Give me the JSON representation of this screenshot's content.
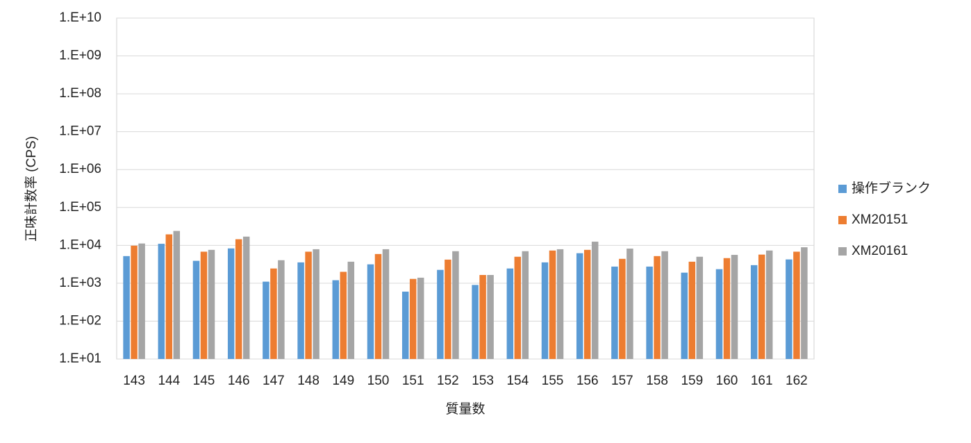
{
  "chart_data": {
    "type": "bar",
    "log_scale": true,
    "grid": true,
    "legend": "right",
    "x_label": "質量数",
    "y_label": "正味計数率 (CPS)",
    "categories": [
      "143",
      "144",
      "145",
      "146",
      "147",
      "148",
      "149",
      "150",
      "151",
      "152",
      "153",
      "154",
      "155",
      "156",
      "157",
      "158",
      "159",
      "160",
      "161",
      "162"
    ],
    "series": [
      {
        "name": "操作ブランク",
        "color": "#5b9bd5",
        "values": [
          5200,
          11000,
          3900,
          8300,
          1100,
          3550,
          1200,
          3150,
          600,
          2250,
          900,
          2450,
          3550,
          6200,
          2750,
          2750,
          1900,
          2350,
          3000,
          4250
        ]
      },
      {
        "name": "XM20151",
        "color": "#ed7d31",
        "values": [
          9800,
          19500,
          6800,
          14500,
          2450,
          6800,
          2000,
          5900,
          1300,
          4200,
          1650,
          5000,
          7300,
          7600,
          4400,
          5200,
          3700,
          4600,
          5700,
          6800
        ]
      },
      {
        "name": "XM20161",
        "color": "#a5a5a5",
        "values": [
          11200,
          24000,
          7600,
          17000,
          4050,
          7900,
          3700,
          7900,
          1400,
          7000,
          1650,
          7000,
          7900,
          12500,
          8200,
          7000,
          5000,
          5600,
          7300,
          8900
        ]
      }
    ],
    "ylim": [
      10,
      10000000000
    ],
    "yticks": [
      {
        "value": 10,
        "label": "1.E+01"
      },
      {
        "value": 100,
        "label": "1.E+02"
      },
      {
        "value": 1000,
        "label": "1.E+03"
      },
      {
        "value": 10000,
        "label": "1.E+04"
      },
      {
        "value": 100000,
        "label": "1.E+05"
      },
      {
        "value": 1000000,
        "label": "1.E+06"
      },
      {
        "value": 10000000,
        "label": "1.E+07"
      },
      {
        "value": 100000000,
        "label": "1.E+08"
      },
      {
        "value": 1000000000,
        "label": "1.E+09"
      },
      {
        "value": 10000000000,
        "label": "1.E+10"
      }
    ]
  }
}
